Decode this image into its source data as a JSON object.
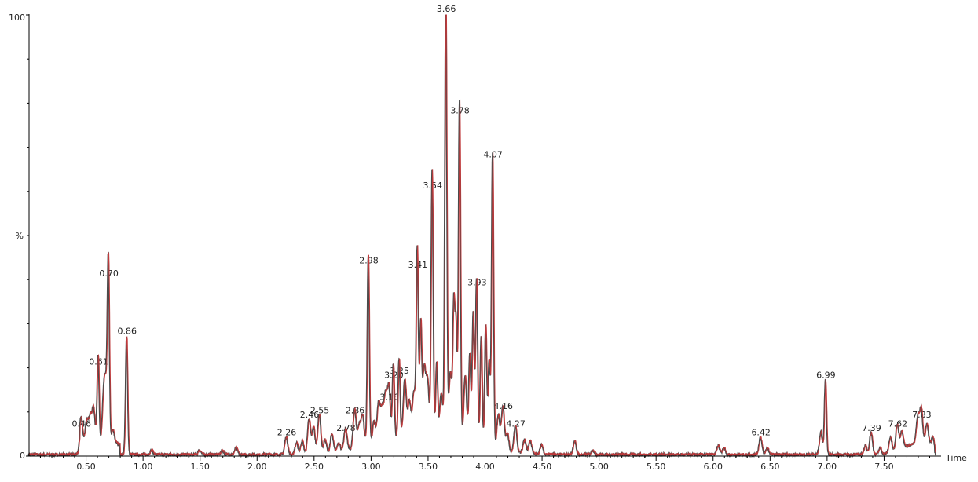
{
  "chart_data": {
    "type": "line",
    "title": "",
    "xlabel": "Time",
    "ylabel": "%",
    "xlim": [
      0.0,
      8.0
    ],
    "ylim": [
      0,
      100
    ],
    "grid": false,
    "legend": "none",
    "colors": {
      "trace": "#c0393b",
      "trace_shadow": "#4a4a4a",
      "axis": "#000000"
    },
    "y_ticks": [
      {
        "value": 0,
        "label": "0"
      },
      {
        "value": 100,
        "label": "100"
      }
    ],
    "x_ticks": [
      {
        "value": 0.5,
        "label": "0.50"
      },
      {
        "value": 1.0,
        "label": "1.00"
      },
      {
        "value": 1.5,
        "label": "1.50"
      },
      {
        "value": 2.0,
        "label": "2.00"
      },
      {
        "value": 2.5,
        "label": "2.50"
      },
      {
        "value": 3.0,
        "label": "3.00"
      },
      {
        "value": 3.5,
        "label": "3.50"
      },
      {
        "value": 4.0,
        "label": "4.00"
      },
      {
        "value": 4.5,
        "label": "4.50"
      },
      {
        "value": 5.0,
        "label": "5.00"
      },
      {
        "value": 5.5,
        "label": "5.50"
      },
      {
        "value": 6.0,
        "label": "6.00"
      },
      {
        "value": 6.5,
        "label": "6.50"
      },
      {
        "value": 7.0,
        "label": "7.00"
      },
      {
        "value": 7.5,
        "label": "7.50"
      }
    ],
    "peaks": [
      {
        "x": 0.46,
        "y": 6,
        "label": "0.46"
      },
      {
        "x": 0.61,
        "y": 20,
        "label": "0.61"
      },
      {
        "x": 0.7,
        "y": 40,
        "label": "0.70"
      },
      {
        "x": 0.86,
        "y": 27,
        "label": "0.86"
      },
      {
        "x": 2.26,
        "y": 4,
        "label": "2.26"
      },
      {
        "x": 2.46,
        "y": 8,
        "label": "2.46"
      },
      {
        "x": 2.55,
        "y": 9,
        "label": "2.55"
      },
      {
        "x": 2.78,
        "y": 5,
        "label": "2.78"
      },
      {
        "x": 2.86,
        "y": 9,
        "label": "2.86"
      },
      {
        "x": 2.98,
        "y": 43,
        "label": "2.98"
      },
      {
        "x": 3.16,
        "y": 12,
        "label": "3.16"
      },
      {
        "x": 3.2,
        "y": 17,
        "label": "3.20"
      },
      {
        "x": 3.25,
        "y": 18,
        "label": "3.25"
      },
      {
        "x": 3.41,
        "y": 42,
        "label": "3.41"
      },
      {
        "x": 3.54,
        "y": 60,
        "label": "3.54"
      },
      {
        "x": 3.66,
        "y": 100,
        "label": "3.66"
      },
      {
        "x": 3.78,
        "y": 77,
        "label": "3.78"
      },
      {
        "x": 3.93,
        "y": 38,
        "label": "3.93"
      },
      {
        "x": 4.07,
        "y": 67,
        "label": "4.07"
      },
      {
        "x": 4.16,
        "y": 10,
        "label": "4.16"
      },
      {
        "x": 4.27,
        "y": 6,
        "label": "4.27"
      },
      {
        "x": 6.42,
        "y": 4,
        "label": "6.42"
      },
      {
        "x": 6.99,
        "y": 17,
        "label": "6.99"
      },
      {
        "x": 7.39,
        "y": 5,
        "label": "7.39"
      },
      {
        "x": 7.62,
        "y": 6,
        "label": "7.62"
      },
      {
        "x": 7.83,
        "y": 8,
        "label": "7.83"
      }
    ],
    "minor_peaks": [
      {
        "x": 0.51,
        "y": 5
      },
      {
        "x": 0.54,
        "y": 6
      },
      {
        "x": 0.57,
        "y": 8
      },
      {
        "x": 0.66,
        "y": 11
      },
      {
        "x": 0.68,
        "y": 10
      },
      {
        "x": 0.74,
        "y": 3
      },
      {
        "x": 1.08,
        "y": 1
      },
      {
        "x": 1.5,
        "y": 1
      },
      {
        "x": 1.7,
        "y": 1
      },
      {
        "x": 1.82,
        "y": 1.5
      },
      {
        "x": 2.35,
        "y": 2.5
      },
      {
        "x": 2.4,
        "y": 3
      },
      {
        "x": 2.5,
        "y": 6
      },
      {
        "x": 2.6,
        "y": 3
      },
      {
        "x": 2.66,
        "y": 4
      },
      {
        "x": 2.72,
        "y": 2
      },
      {
        "x": 2.9,
        "y": 5
      },
      {
        "x": 2.93,
        "y": 7
      },
      {
        "x": 3.03,
        "y": 5
      },
      {
        "x": 3.07,
        "y": 9
      },
      {
        "x": 3.1,
        "y": 7
      },
      {
        "x": 3.13,
        "y": 10
      },
      {
        "x": 3.3,
        "y": 13
      },
      {
        "x": 3.34,
        "y": 8
      },
      {
        "x": 3.38,
        "y": 10
      },
      {
        "x": 3.44,
        "y": 25
      },
      {
        "x": 3.47,
        "y": 15
      },
      {
        "x": 3.5,
        "y": 12
      },
      {
        "x": 3.58,
        "y": 17
      },
      {
        "x": 3.62,
        "y": 10
      },
      {
        "x": 3.7,
        "y": 15
      },
      {
        "x": 3.73,
        "y": 30
      },
      {
        "x": 3.75,
        "y": 25
      },
      {
        "x": 3.83,
        "y": 15
      },
      {
        "x": 3.87,
        "y": 20
      },
      {
        "x": 3.9,
        "y": 30
      },
      {
        "x": 3.97,
        "y": 25
      },
      {
        "x": 4.01,
        "y": 28
      },
      {
        "x": 4.04,
        "y": 20
      },
      {
        "x": 4.12,
        "y": 8
      },
      {
        "x": 4.2,
        "y": 4
      },
      {
        "x": 4.35,
        "y": 3
      },
      {
        "x": 4.4,
        "y": 3
      },
      {
        "x": 4.5,
        "y": 2
      },
      {
        "x": 4.79,
        "y": 3
      },
      {
        "x": 4.95,
        "y": 1
      },
      {
        "x": 6.05,
        "y": 2
      },
      {
        "x": 6.1,
        "y": 1.5
      },
      {
        "x": 6.48,
        "y": 1.5
      },
      {
        "x": 6.95,
        "y": 5
      },
      {
        "x": 7.34,
        "y": 2
      },
      {
        "x": 7.47,
        "y": 1.5
      },
      {
        "x": 7.56,
        "y": 3.5
      },
      {
        "x": 7.66,
        "y": 4
      },
      {
        "x": 7.8,
        "y": 6
      },
      {
        "x": 7.88,
        "y": 5
      },
      {
        "x": 7.93,
        "y": 2.5
      }
    ],
    "baseline": 0.4
  }
}
